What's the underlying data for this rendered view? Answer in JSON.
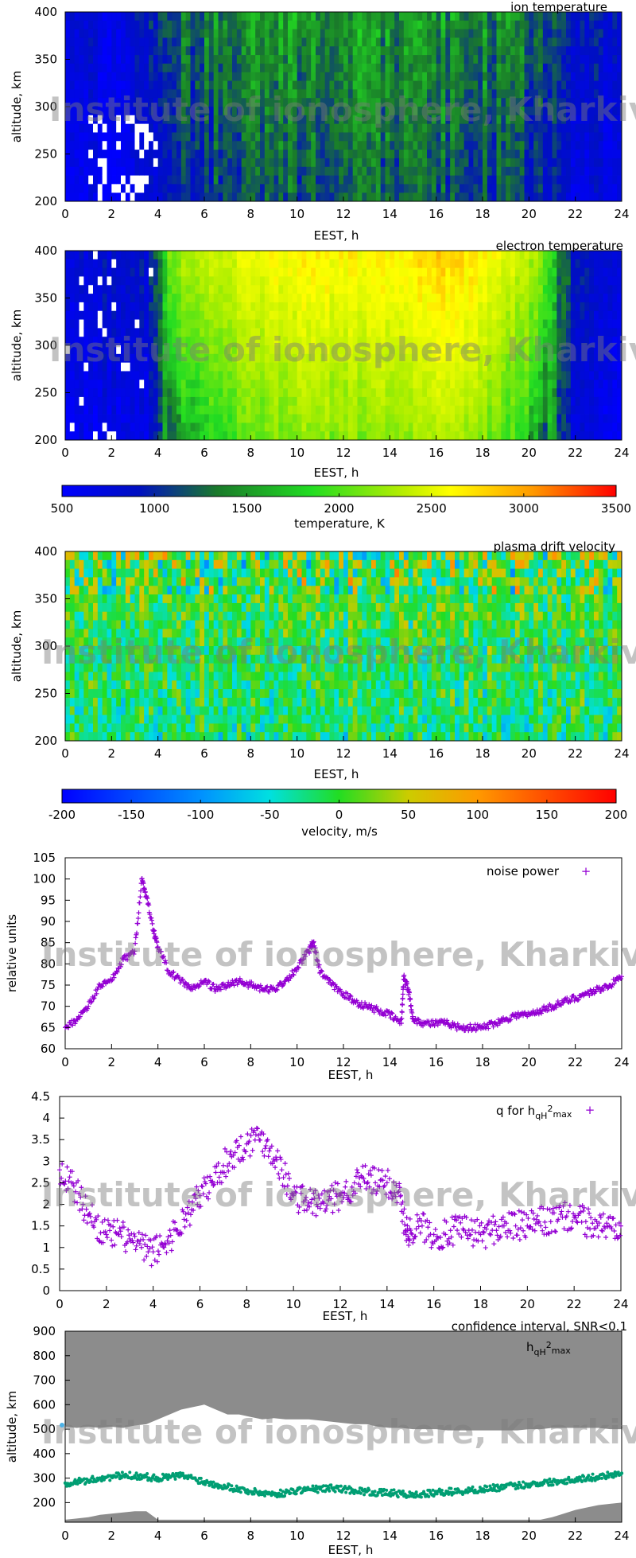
{
  "watermark": "Institute of ionosphere, Kharkiv",
  "colors": {
    "axis": "#000000",
    "scatter_purple": "#9400d3",
    "green_points": "#009e73",
    "conf_gray": "#8c8c8c",
    "tooltip_dot": "#4cb1e6"
  },
  "chart_data": [
    {
      "id": "ion-temperature",
      "type": "heatmap",
      "title": "ion temperature",
      "xlabel": "EEST, h",
      "ylabel": "altitude, km",
      "xlim": [
        0,
        24
      ],
      "ylim": [
        200,
        400
      ],
      "xticks": [
        "0",
        "2",
        "4",
        "6",
        "8",
        "10",
        "12",
        "14",
        "16",
        "18",
        "20",
        "22",
        "24"
      ],
      "yticks": [
        "200",
        "250",
        "300",
        "350",
        "400"
      ],
      "colorbar": "temperature",
      "profile_by_hour": [
        {
          "h": 0,
          "v": 700
        },
        {
          "h": 2,
          "v": 650
        },
        {
          "h": 4,
          "v": 800
        },
        {
          "h": 5,
          "v": 1050
        },
        {
          "h": 7,
          "v": 1150
        },
        {
          "h": 10,
          "v": 1200
        },
        {
          "h": 14,
          "v": 1200
        },
        {
          "h": 18,
          "v": 1150
        },
        {
          "h": 21,
          "v": 1050
        },
        {
          "h": 22,
          "v": 850
        },
        {
          "h": 24,
          "v": 700
        }
      ]
    },
    {
      "id": "electron-temperature",
      "type": "heatmap",
      "title": "electron temperature",
      "xlabel": "EEST, h",
      "ylabel": "altitude, km",
      "xlim": [
        0,
        24
      ],
      "ylim": [
        200,
        400
      ],
      "xticks": [
        "0",
        "2",
        "4",
        "6",
        "8",
        "10",
        "12",
        "14",
        "16",
        "18",
        "20",
        "22",
        "24"
      ],
      "yticks": [
        "200",
        "250",
        "300",
        "350",
        "400"
      ],
      "colorbar": "temperature",
      "profile_by_hour": [
        {
          "h": 0,
          "v": 700
        },
        {
          "h": 3.5,
          "v": 750
        },
        {
          "h": 4.5,
          "v": 1500
        },
        {
          "h": 6,
          "v": 1800
        },
        {
          "h": 8,
          "v": 2100
        },
        {
          "h": 10,
          "v": 2200
        },
        {
          "h": 12,
          "v": 2200
        },
        {
          "h": 14,
          "v": 2250
        },
        {
          "h": 16,
          "v": 2350
        },
        {
          "h": 18,
          "v": 2200
        },
        {
          "h": 20,
          "v": 1800
        },
        {
          "h": 21,
          "v": 1300
        },
        {
          "h": 22,
          "v": 800
        },
        {
          "h": 24,
          "v": 700
        }
      ]
    },
    {
      "id": "temperature-colorbar",
      "type": "colorbar",
      "label": "temperature, K",
      "range": [
        500,
        3500
      ],
      "ticks": [
        "500",
        "1000",
        "1500",
        "2000",
        "2500",
        "3000",
        "3500"
      ]
    },
    {
      "id": "plasma-drift-velocity",
      "type": "heatmap",
      "title": "plasma drift velocity",
      "xlabel": "EEST, h",
      "ylabel": "altitude, km",
      "xlim": [
        0,
        24
      ],
      "ylim": [
        200,
        400
      ],
      "xticks": [
        "0",
        "2",
        "4",
        "6",
        "8",
        "10",
        "12",
        "14",
        "16",
        "18",
        "20",
        "22",
        "24"
      ],
      "yticks": [
        "200",
        "250",
        "300",
        "350",
        "400"
      ],
      "colorbar": "velocity",
      "mean_value": -10
    },
    {
      "id": "velocity-colorbar",
      "type": "colorbar",
      "label": "velocity, m/s",
      "range": [
        -200,
        200
      ],
      "ticks": [
        "-200",
        "-150",
        "-100",
        "-50",
        "0",
        "50",
        "100",
        "150",
        "200"
      ]
    },
    {
      "id": "noise-power",
      "type": "scatter",
      "legend": "noise power",
      "xlabel": "EEST, h",
      "ylabel": "relative units",
      "xlim": [
        0,
        24
      ],
      "ylim": [
        60,
        105
      ],
      "xticks": [
        "0",
        "2",
        "4",
        "6",
        "8",
        "10",
        "12",
        "14",
        "16",
        "18",
        "20",
        "22",
        "24"
      ],
      "yticks": [
        "60",
        "65",
        "70",
        "75",
        "80",
        "85",
        "90",
        "95",
        "100",
        "105"
      ],
      "x": [
        0,
        0.5,
        1,
        1.5,
        2,
        2.5,
        3,
        3.3,
        3.5,
        3.8,
        4,
        4.5,
        5,
        5.5,
        6,
        6.5,
        7,
        7.5,
        8,
        8.5,
        9,
        9.5,
        10,
        10.5,
        10.7,
        11,
        11.5,
        12,
        12.5,
        13,
        13.5,
        14,
        14.5,
        14.6,
        14.8,
        15,
        15.5,
        16,
        16.5,
        17,
        17.5,
        18,
        18.5,
        19,
        19.5,
        20,
        20.5,
        21,
        21.5,
        22,
        22.5,
        23,
        23.5,
        24
      ],
      "y": [
        65,
        67,
        70,
        75,
        76,
        81,
        83,
        100,
        96,
        88,
        84,
        78,
        76,
        74,
        76,
        74,
        75,
        76,
        75,
        74,
        74,
        76,
        79,
        83,
        85,
        78,
        75,
        73,
        71,
        70,
        69,
        68,
        66,
        77,
        74,
        67,
        66,
        66,
        66,
        65,
        65,
        65,
        66,
        67,
        68,
        68,
        69,
        70,
        71,
        72,
        73,
        74,
        75,
        77
      ]
    },
    {
      "id": "q-for-hqh2max",
      "type": "scatter",
      "legend": "q for h",
      "legend_sub": "qH",
      "legend_sup": "2",
      "legend_sub2": "max",
      "xlabel": "EEST, h",
      "ylabel": "",
      "xlim": [
        0,
        24
      ],
      "ylim": [
        0,
        4.5
      ],
      "xticks": [
        "0",
        "2",
        "4",
        "6",
        "8",
        "10",
        "12",
        "14",
        "16",
        "18",
        "20",
        "22",
        "24"
      ],
      "yticks": [
        "0",
        "0.5",
        "1",
        "1.5",
        "2",
        "2.5",
        "3",
        "3.5",
        "4",
        "4.5"
      ],
      "x": [
        0,
        0.5,
        1,
        1.5,
        2,
        2.5,
        3,
        3.5,
        4,
        4.5,
        5,
        5.5,
        6,
        6.5,
        7,
        7.5,
        8,
        8.5,
        9,
        9.5,
        10,
        10.5,
        11,
        11.5,
        12,
        12.5,
        13,
        13.5,
        14,
        14.5,
        14.8,
        15,
        15.5,
        16,
        16.5,
        17,
        17.5,
        18,
        18.5,
        19,
        19.5,
        20,
        20.5,
        21,
        21.5,
        22,
        22.5,
        23,
        23.5,
        24
      ],
      "y": [
        2.8,
        2.5,
        2.0,
        1.6,
        1.3,
        1.3,
        1.2,
        1.0,
        0.9,
        1.1,
        1.4,
        1.8,
        2.2,
        2.5,
        2.9,
        3.2,
        3.4,
        3.6,
        3.3,
        2.8,
        2.2,
        2.1,
        2.0,
        2.1,
        2.2,
        2.4,
        2.6,
        2.5,
        2.5,
        2.3,
        1.4,
        1.4,
        1.5,
        1.3,
        1.3,
        1.4,
        1.4,
        1.3,
        1.4,
        1.5,
        1.5,
        1.5,
        1.6,
        1.6,
        1.7,
        1.7,
        1.6,
        1.5,
        1.5,
        1.5
      ]
    },
    {
      "id": "hqh2max-altitude",
      "type": "scatter",
      "title": "confidence interval, SNR<0.1",
      "legend": "h",
      "legend_sub": "qH",
      "legend_sup": "2",
      "legend_sub2": "max",
      "xlabel": "EEST, h",
      "ylabel": "altitude, km",
      "xlim": [
        0,
        24
      ],
      "ylim": [
        120,
        900
      ],
      "xticks": [
        "0",
        "2",
        "4",
        "6",
        "8",
        "10",
        "12",
        "14",
        "16",
        "18",
        "20",
        "22",
        "24"
      ],
      "yticks": [
        "200",
        "300",
        "400",
        "500",
        "600",
        "700",
        "800",
        "900"
      ],
      "x": [
        0,
        0.5,
        1,
        1.5,
        2,
        2.5,
        3,
        3.5,
        4,
        4.5,
        5,
        5.5,
        6,
        6.5,
        7,
        7.5,
        8,
        8.5,
        9,
        9.5,
        10,
        10.5,
        11,
        11.5,
        12,
        12.5,
        13,
        13.5,
        14,
        14.5,
        15,
        15.5,
        16,
        16.5,
        17,
        17.5,
        18,
        18.5,
        19,
        19.5,
        20,
        20.5,
        21,
        21.5,
        22,
        22.5,
        23,
        23.5,
        24
      ],
      "y": [
        280,
        285,
        290,
        300,
        305,
        310,
        310,
        305,
        300,
        305,
        310,
        300,
        285,
        275,
        265,
        255,
        245,
        240,
        235,
        240,
        250,
        255,
        255,
        260,
        255,
        250,
        245,
        240,
        240,
        235,
        230,
        235,
        240,
        245,
        245,
        250,
        255,
        260,
        265,
        270,
        275,
        280,
        285,
        290,
        295,
        300,
        305,
        315,
        320
      ],
      "conf_upper": [
        510,
        505,
        510,
        505,
        510,
        505,
        515,
        520,
        540,
        560,
        580,
        590,
        600,
        580,
        560,
        560,
        550,
        540,
        545,
        540,
        540,
        540,
        535,
        530,
        525,
        520,
        520,
        510,
        505,
        505,
        500,
        500,
        500,
        495,
        495,
        495,
        495,
        495,
        495,
        495,
        500,
        500,
        505,
        505,
        505,
        505,
        505,
        500,
        500
      ],
      "conf_lower": [
        130,
        135,
        140,
        150,
        155,
        160,
        165,
        165,
        130,
        130,
        130,
        130,
        130,
        130,
        130,
        130,
        130,
        130,
        130,
        130,
        130,
        130,
        130,
        130,
        130,
        130,
        130,
        130,
        130,
        130,
        130,
        130,
        130,
        130,
        130,
        130,
        130,
        130,
        130,
        130,
        130,
        130,
        140,
        155,
        170,
        180,
        190,
        195,
        200
      ]
    }
  ]
}
